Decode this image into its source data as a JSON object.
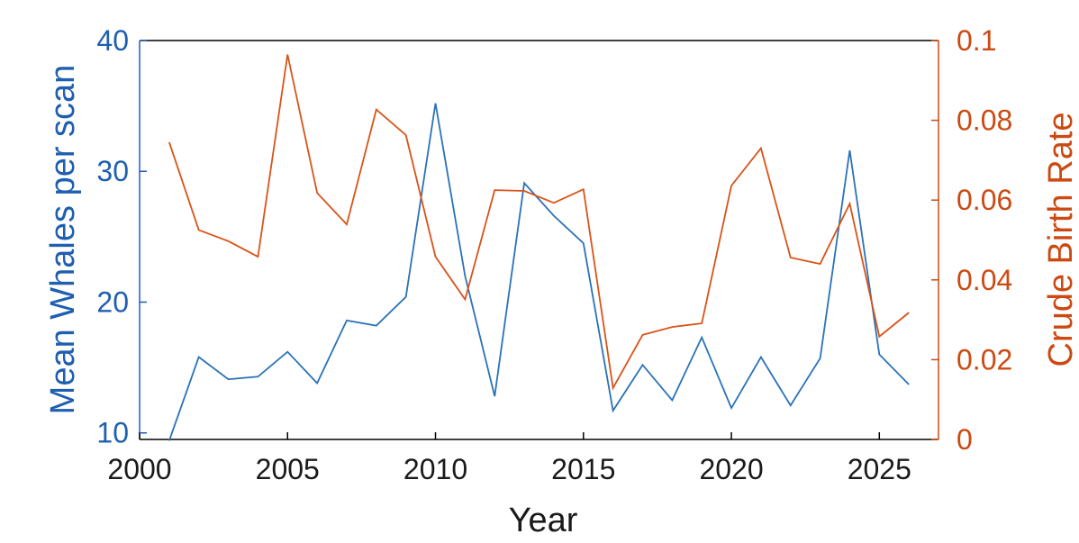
{
  "chart_data": {
    "type": "line",
    "title": "",
    "xlabel": "Year",
    "ylabel": "Mean Whales per scan",
    "y2label": "Crude Birth Rate",
    "xlim": [
      2000,
      2027
    ],
    "ylim": [
      9.5,
      40
    ],
    "y2lim": [
      0,
      0.1
    ],
    "xticks": [
      "2000",
      "2005",
      "2010",
      "2015",
      "2020",
      "2025"
    ],
    "yticks": [
      "10",
      "20",
      "30",
      "40"
    ],
    "y2ticks": [
      "0",
      "0.02",
      "0.04",
      "0.06",
      "0.08",
      "0.1"
    ],
    "grid": false,
    "legend": "none",
    "colors": {
      "left_axis": "#1f5fb0",
      "right_axis": "#cc4a12",
      "series_whales": "#2a72b8",
      "series_birth": "#d95319",
      "frame": "#000000"
    },
    "x": [
      2001,
      2002,
      2003,
      2004,
      2005,
      2006,
      2007,
      2008,
      2009,
      2010,
      2011,
      2012,
      2013,
      2014,
      2015,
      2016,
      2017,
      2018,
      2019,
      2020,
      2021,
      2022,
      2023,
      2024,
      2025,
      2026
    ],
    "series": [
      {
        "axis": "left",
        "values": [
          9.4,
          15.8,
          14.1,
          14.3,
          16.2,
          13.8,
          18.6,
          18.2,
          20.4,
          35.2,
          22.0,
          12.8,
          29.1,
          26.6,
          24.5,
          11.7,
          15.2,
          12.5,
          17.3,
          11.9,
          15.8,
          12.1,
          15.7,
          31.6,
          16.0,
          13.7
        ]
      },
      {
        "axis": "right",
        "values": [
          0.0745,
          0.0525,
          0.0497,
          0.0458,
          0.0965,
          0.0618,
          0.0539,
          0.0827,
          0.0763,
          0.0458,
          0.0351,
          0.0625,
          0.0623,
          0.0593,
          0.0627,
          0.0129,
          0.0262,
          0.0282,
          0.0291,
          0.0636,
          0.073,
          0.0456,
          0.044,
          0.0591,
          0.0258,
          0.0318
        ]
      }
    ]
  }
}
